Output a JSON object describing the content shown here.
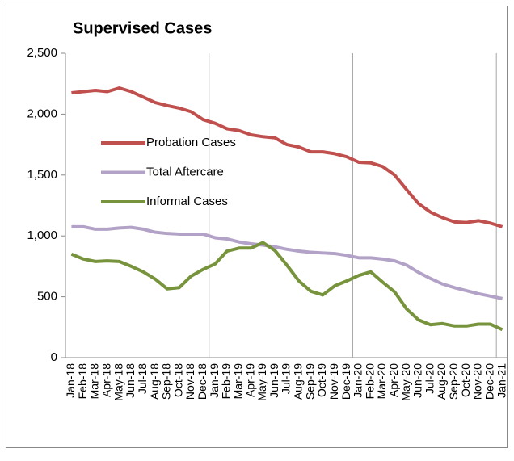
{
  "chart_data": {
    "type": "line",
    "title": "Supervised Cases",
    "categories": [
      "Jan-18",
      "Feb-18",
      "Mar-18",
      "Apr-18",
      "May-18",
      "Jun-18",
      "Jul-18",
      "Aug-18",
      "Sep-18",
      "Oct-18",
      "Nov-18",
      "Dec-18",
      "Jan-19",
      "Feb-19",
      "Mar-19",
      "Apr-19",
      "May-19",
      "Jun-19",
      "Jul-19",
      "Aug-19",
      "Sep-19",
      "Oct-19",
      "Nov-19",
      "Dec-19",
      "Jan-20",
      "Feb-20",
      "Mar-20",
      "Apr-20",
      "May-20",
      "Jun-20",
      "Jul-20",
      "Aug-20",
      "Sep-20",
      "Oct-20",
      "Nov-20",
      "Dec-20",
      "Jan-21"
    ],
    "series": [
      {
        "name": "Probation Cases",
        "color": "#c0504d",
        "values": [
          2175,
          2185,
          2195,
          2185,
          2215,
          2185,
          2140,
          2095,
          2070,
          2050,
          2020,
          1955,
          1925,
          1880,
          1865,
          1830,
          1815,
          1805,
          1750,
          1730,
          1690,
          1690,
          1675,
          1650,
          1605,
          1600,
          1570,
          1500,
          1380,
          1265,
          1195,
          1150,
          1115,
          1110,
          1125,
          1105,
          1075
        ]
      },
      {
        "name": "Total Aftercare",
        "color": "#b3a2c7",
        "values": [
          1075,
          1075,
          1055,
          1055,
          1065,
          1070,
          1055,
          1030,
          1020,
          1015,
          1015,
          1015,
          985,
          975,
          950,
          935,
          925,
          910,
          890,
          875,
          865,
          860,
          855,
          840,
          820,
          820,
          810,
          795,
          760,
          700,
          650,
          605,
          575,
          550,
          525,
          505,
          485
        ]
      },
      {
        "name": "Informal Cases",
        "color": "#77933c",
        "values": [
          850,
          810,
          790,
          795,
          790,
          750,
          705,
          645,
          565,
          575,
          670,
          725,
          770,
          875,
          900,
          900,
          945,
          880,
          760,
          630,
          545,
          515,
          590,
          630,
          675,
          705,
          620,
          540,
          400,
          310,
          270,
          280,
          260,
          260,
          275,
          275,
          230
        ]
      }
    ],
    "ylim": [
      0,
      2500
    ],
    "yticks": [
      0,
      500,
      {
        "value": 1000,
        "label": "1,000"
      },
      {
        "value": 1500,
        "label": "1,500"
      },
      {
        "value": 2000,
        "label": "2,000"
      },
      {
        "value": 2500,
        "label": "2,500"
      }
    ],
    "grid": true
  }
}
